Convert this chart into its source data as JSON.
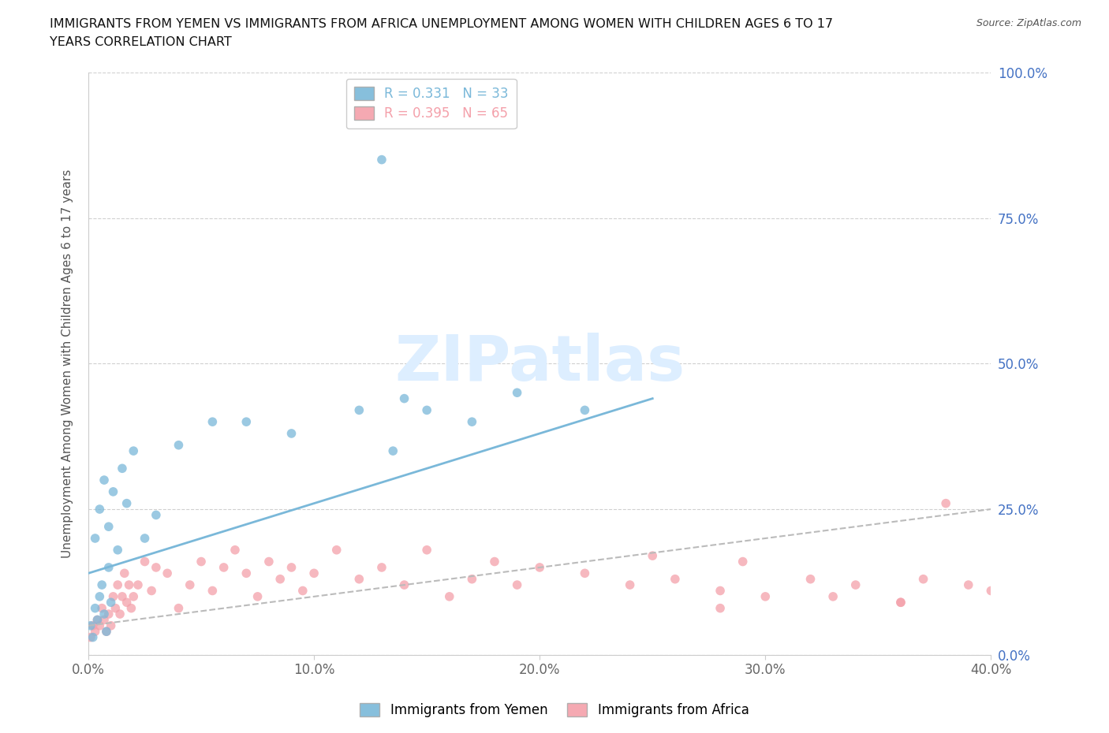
{
  "title_line1": "IMMIGRANTS FROM YEMEN VS IMMIGRANTS FROM AFRICA UNEMPLOYMENT AMONG WOMEN WITH CHILDREN AGES 6 TO 17",
  "title_line2": "YEARS CORRELATION CHART",
  "source": "Source: ZipAtlas.com",
  "ylabel": "Unemployment Among Women with Children Ages 6 to 17 years",
  "xlabel_ticks": [
    "0.0%",
    "10.0%",
    "20.0%",
    "30.0%",
    "40.0%"
  ],
  "xlabel_vals": [
    0,
    10,
    20,
    30,
    40
  ],
  "ylabel_ticks_right": [
    "100.0%",
    "75.0%",
    "50.0%",
    "25.0%",
    "0.0%"
  ],
  "ylabel_vals": [
    100,
    75,
    50,
    25,
    0
  ],
  "xlim": [
    0,
    40
  ],
  "ylim": [
    0,
    100
  ],
  "R_yemen": 0.331,
  "N_yemen": 33,
  "R_africa": 0.395,
  "N_africa": 65,
  "legend_label_yemen": "Immigrants from Yemen",
  "legend_label_africa": "Immigrants from Africa",
  "color_yemen": "#7ab8d9",
  "color_africa": "#f4a0aa",
  "trend_yemen_color": "#7ab8d9",
  "trend_africa_color": "#bbbbbb",
  "watermark_text": "ZIPatlas",
  "watermark_color": "#ddeeff",
  "background_color": "#ffffff",
  "yemen_x": [
    0.1,
    0.2,
    0.3,
    0.4,
    0.5,
    0.6,
    0.7,
    0.8,
    0.9,
    1.0,
    0.3,
    0.5,
    0.7,
    0.9,
    1.1,
    1.3,
    1.5,
    1.7,
    2.0,
    2.5,
    3.0,
    4.0,
    5.5,
    7.0,
    9.0,
    12.0,
    13.0,
    13.5,
    14.0,
    15.0,
    17.0,
    19.0,
    22.0
  ],
  "yemen_y": [
    5,
    3,
    8,
    6,
    10,
    12,
    7,
    4,
    15,
    9,
    20,
    25,
    30,
    22,
    28,
    18,
    32,
    26,
    35,
    20,
    24,
    36,
    40,
    40,
    38,
    42,
    85,
    35,
    44,
    42,
    40,
    45,
    42
  ],
  "africa_x": [
    0.1,
    0.2,
    0.3,
    0.4,
    0.5,
    0.6,
    0.7,
    0.8,
    0.9,
    1.0,
    1.1,
    1.2,
    1.3,
    1.4,
    1.5,
    1.6,
    1.7,
    1.8,
    1.9,
    2.0,
    2.2,
    2.5,
    2.8,
    3.0,
    3.5,
    4.0,
    4.5,
    5.0,
    5.5,
    6.0,
    6.5,
    7.0,
    7.5,
    8.0,
    8.5,
    9.0,
    9.5,
    10.0,
    11.0,
    12.0,
    13.0,
    14.0,
    15.0,
    16.0,
    17.0,
    18.0,
    19.0,
    20.0,
    22.0,
    24.0,
    25.0,
    26.0,
    28.0,
    29.0,
    30.0,
    32.0,
    33.0,
    34.0,
    36.0,
    37.0,
    38.0,
    39.0,
    40.0,
    28.0,
    36.0
  ],
  "africa_y": [
    3,
    5,
    4,
    6,
    5,
    8,
    6,
    4,
    7,
    5,
    10,
    8,
    12,
    7,
    10,
    14,
    9,
    12,
    8,
    10,
    12,
    16,
    11,
    15,
    14,
    8,
    12,
    16,
    11,
    15,
    18,
    14,
    10,
    16,
    13,
    15,
    11,
    14,
    18,
    13,
    15,
    12,
    18,
    10,
    13,
    16,
    12,
    15,
    14,
    12,
    17,
    13,
    11,
    16,
    10,
    13,
    10,
    12,
    9,
    13,
    26,
    12,
    11,
    8,
    9
  ],
  "trend_yemen_x0": 0,
  "trend_yemen_y0": 14,
  "trend_yemen_x1": 25,
  "trend_yemen_y1": 44,
  "trend_africa_x0": 0,
  "trend_africa_y0": 5,
  "trend_africa_x1": 40,
  "trend_africa_y1": 25
}
